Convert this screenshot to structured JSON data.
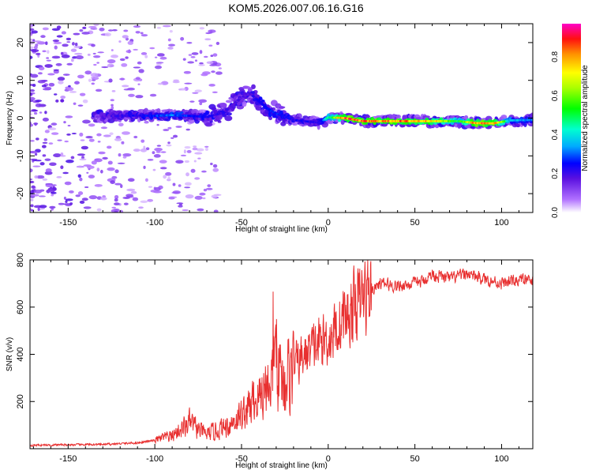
{
  "title": "KOM5.2026.007.06.16.G16",
  "chart_data": [
    {
      "type": "heatmap",
      "title": "KOM5.2026.007.06.16.G16",
      "xlabel": "Height of straight line (km)",
      "ylabel": "Frequency (Hz)",
      "xlim": [
        -172,
        118
      ],
      "ylim": [
        -25,
        25
      ],
      "xticks": [
        -150,
        -100,
        -50,
        0,
        50,
        100
      ],
      "yticks": [
        -20,
        -10,
        0,
        10,
        20
      ],
      "colorbar": {
        "label": "Normalized spectral amplitude",
        "range": [
          0,
          0.97
        ],
        "ticks": [
          "0.0",
          "0.2",
          "0.4",
          "0.6",
          "0.8"
        ]
      },
      "ridge": {
        "description_points_x": [
          -130,
          -110,
          -100,
          -90,
          -80,
          -70,
          -60,
          -55,
          -50,
          -45,
          -40,
          -35,
          -30,
          -20,
          -10,
          -5,
          0,
          10,
          20,
          40,
          60,
          75,
          85,
          95,
          105,
          118
        ],
        "frequency_hz": [
          0.5,
          0.7,
          0.6,
          0.8,
          0.6,
          0.3,
          1.5,
          3.5,
          5.5,
          6.5,
          4.5,
          2.5,
          1.2,
          -0.5,
          -1.0,
          -1.2,
          0.2,
          0,
          -0.8,
          -0.8,
          -0.8,
          -0.8,
          -1.3,
          -1.4,
          -0.6,
          -0.5
        ],
        "amplitude": [
          0.2,
          0.25,
          0.3,
          0.35,
          0.3,
          0.25,
          0.22,
          0.2,
          0.2,
          0.2,
          0.25,
          0.3,
          0.3,
          0.25,
          0.25,
          0.22,
          0.5,
          0.95,
          0.9,
          0.9,
          0.85,
          0.55,
          0.9,
          0.95,
          0.4,
          0.35
        ]
      }
    },
    {
      "type": "line",
      "xlabel": "Height of straight line (km)",
      "ylabel": "SNR (v/v)",
      "xlim": [
        -172,
        118
      ],
      "ylim": [
        0,
        800
      ],
      "xticks": [
        -150,
        -100,
        -50,
        0,
        50,
        100
      ],
      "yticks": [
        200,
        400,
        600,
        800
      ],
      "color": "#e83030",
      "envelope_x": [
        -172,
        -130,
        -110,
        -100,
        -90,
        -80,
        -75,
        -70,
        -60,
        -50,
        -40,
        -35,
        -30,
        -25,
        -20,
        -10,
        0,
        10,
        20,
        30,
        40,
        50,
        55,
        60,
        70,
        80,
        90,
        100,
        110,
        118
      ],
      "envelope_y": [
        15,
        18,
        25,
        35,
        55,
        110,
        80,
        60,
        90,
        140,
        220,
        280,
        330,
        300,
        350,
        420,
        470,
        560,
        640,
        700,
        690,
        700,
        710,
        740,
        720,
        740,
        720,
        700,
        715,
        710
      ]
    }
  ]
}
